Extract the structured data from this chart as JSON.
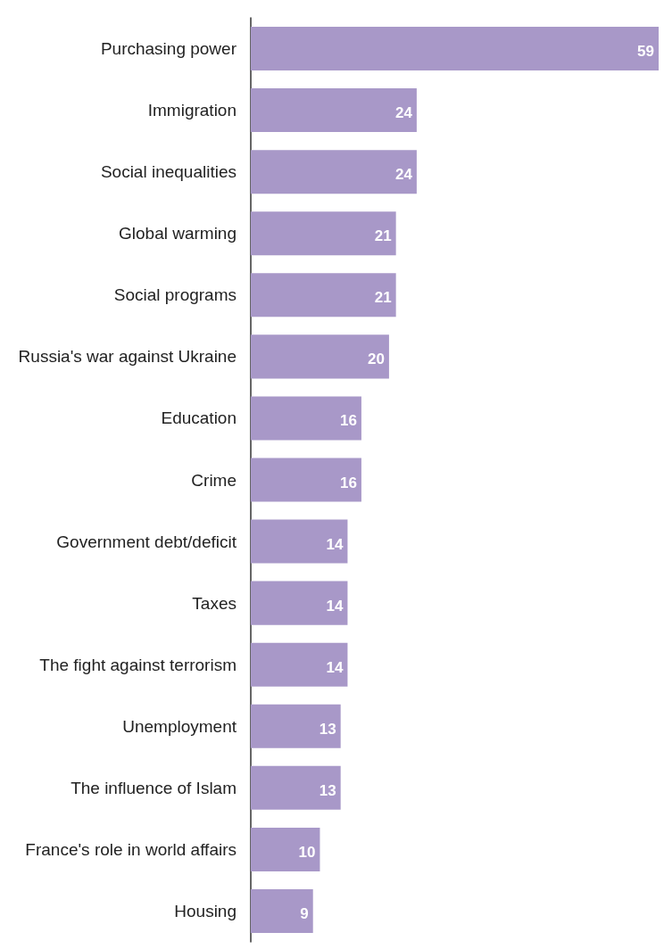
{
  "chart_data": {
    "type": "bar",
    "orientation": "horizontal",
    "categories": [
      "Purchasing power",
      "Immigration",
      "Social inequalities",
      "Global warming",
      "Social programs",
      "Russia's war against Ukraine",
      "Education",
      "Crime",
      "Government debt/deficit",
      "Taxes",
      "The fight against terrorism",
      "Unemployment",
      "The influence of Islam",
      "France's role in world affairs",
      "Housing"
    ],
    "values": [
      59,
      24,
      24,
      21,
      21,
      20,
      16,
      16,
      14,
      14,
      14,
      13,
      13,
      10,
      9
    ],
    "color": "#a898c8",
    "data_labels": true
  }
}
